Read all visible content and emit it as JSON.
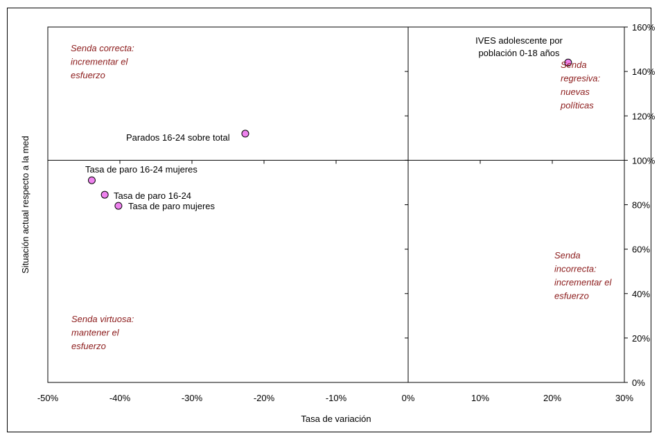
{
  "chart_data": {
    "type": "scatter",
    "xlabel": "Tasa de variación",
    "ylabel": "Situación actual respecto a la med",
    "xlim": [
      -0.5,
      0.3
    ],
    "ylim": [
      0,
      1.6
    ],
    "x_ticks": [
      {
        "value": -0.5,
        "label": "-50%"
      },
      {
        "value": -0.4,
        "label": "-40%"
      },
      {
        "value": -0.3,
        "label": "-30%"
      },
      {
        "value": -0.2,
        "label": "-20%"
      },
      {
        "value": -0.1,
        "label": "-10%"
      },
      {
        "value": 0.0,
        "label": "0%"
      },
      {
        "value": 0.1,
        "label": "10%"
      },
      {
        "value": 0.2,
        "label": "20%"
      },
      {
        "value": 0.3,
        "label": "30%"
      }
    ],
    "y_ticks": [
      {
        "value": 0.0,
        "label": "0%"
      },
      {
        "value": 0.2,
        "label": "20%"
      },
      {
        "value": 0.4,
        "label": "40%"
      },
      {
        "value": 0.6,
        "label": "60%"
      },
      {
        "value": 0.8,
        "label": "80%"
      },
      {
        "value": 1.0,
        "label": "100%"
      },
      {
        "value": 1.2,
        "label": "120%"
      },
      {
        "value": 1.4,
        "label": "140%"
      },
      {
        "value": 1.6,
        "label": "160%"
      }
    ],
    "y_axis_position": "right",
    "grid": false,
    "point_color": "#ee82ee",
    "zone_label_color": "#8b1a1a",
    "points": [
      {
        "label": "IVES adolescente por población 0-18 años",
        "label_lines": [
          "IVES adolescente por",
          "población 0-18 años"
        ],
        "x": 0.222,
        "y": 1.44
      },
      {
        "label": "Parados 16-24 sobre total",
        "label_lines": [
          "Parados 16-24 sobre total"
        ],
        "x": -0.226,
        "y": 1.12
      },
      {
        "label": "Tasa de paro 16-24 mujeres",
        "label_lines": [
          "Tasa de paro 16-24 mujeres"
        ],
        "x": -0.439,
        "y": 0.91
      },
      {
        "label": "Tasa de paro 16-24",
        "label_lines": [
          "Tasa de paro 16-24"
        ],
        "x": -0.421,
        "y": 0.845
      },
      {
        "label": "Tasa de paro mujeres",
        "label_lines": [
          "Tasa de paro mujeres"
        ],
        "x": -0.402,
        "y": 0.795
      }
    ],
    "zone_annotations": [
      {
        "name": "top-left",
        "lines": [
          "Senda correcta:",
          "incrementar el",
          "esfuerzo"
        ]
      },
      {
        "name": "top-right",
        "lines": [
          "Senda",
          "regresiva:",
          "nuevas",
          "políticas"
        ]
      },
      {
        "name": "bottom-right",
        "lines": [
          "Senda",
          "incorrecta:",
          "incrementar el",
          "esfuerzo"
        ]
      },
      {
        "name": "bottom-left",
        "lines": [
          "Senda virtuosa:",
          "mantener el",
          "esfuerzo"
        ]
      }
    ]
  }
}
